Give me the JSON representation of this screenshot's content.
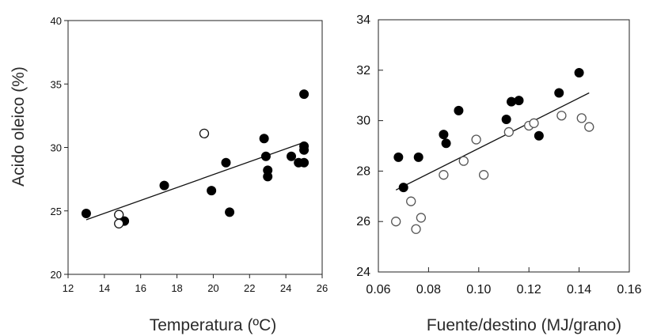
{
  "chart_data": [
    {
      "type": "scatter",
      "xlabel": "Temperatura (ºC)",
      "ylabel": "Acido oleico (%)",
      "xlim": [
        12,
        26
      ],
      "ylim": [
        20,
        40
      ],
      "xticks": [
        "12",
        "14",
        "16",
        "18",
        "20",
        "22",
        "24",
        "26"
      ],
      "yticks": [
        "20",
        "25",
        "30",
        "35",
        "40"
      ],
      "grid": false,
      "series": [
        {
          "marker": "filled",
          "color": "#000000",
          "points": [
            [
              13.0,
              24.8
            ],
            [
              15.1,
              24.2
            ],
            [
              17.3,
              27.0
            ],
            [
              19.9,
              26.6
            ],
            [
              20.7,
              28.8
            ],
            [
              20.9,
              24.9
            ],
            [
              22.8,
              30.7
            ],
            [
              22.9,
              29.3
            ],
            [
              23.0,
              28.2
            ],
            [
              23.0,
              27.7
            ],
            [
              24.3,
              29.3
            ],
            [
              24.7,
              28.8
            ],
            [
              25.0,
              34.2
            ],
            [
              25.0,
              30.1
            ],
            [
              25.0,
              29.8
            ],
            [
              25.0,
              28.8
            ]
          ]
        },
        {
          "marker": "open",
          "color": "#000000",
          "points": [
            [
              14.8,
              24.7
            ],
            [
              14.8,
              24.0
            ],
            [
              19.5,
              31.1
            ]
          ]
        }
      ],
      "trendline": {
        "x": [
          13.0,
          25.0
        ],
        "y": [
          24.3,
          30.4
        ]
      }
    },
    {
      "type": "scatter",
      "xlabel": "Fuente/destino (MJ/grano)",
      "ylabel": "",
      "xlim": [
        0.06,
        0.16
      ],
      "ylim": [
        24,
        34
      ],
      "xticks": [
        "0.06",
        "0.08",
        "0.10",
        "0.12",
        "0.14",
        "0.16"
      ],
      "yticks": [
        "24",
        "26",
        "28",
        "30",
        "32",
        "34"
      ],
      "grid": false,
      "series": [
        {
          "marker": "filled",
          "color": "#000000",
          "points": [
            [
              0.068,
              28.55
            ],
            [
              0.07,
              27.35
            ],
            [
              0.076,
              28.55
            ],
            [
              0.086,
              29.45
            ],
            [
              0.087,
              29.1
            ],
            [
              0.092,
              30.4
            ],
            [
              0.111,
              30.05
            ],
            [
              0.113,
              30.75
            ],
            [
              0.116,
              30.8
            ],
            [
              0.124,
              29.4
            ],
            [
              0.132,
              31.1
            ],
            [
              0.14,
              31.9
            ]
          ]
        },
        {
          "marker": "open",
          "color": "#000000",
          "points": [
            [
              0.067,
              26.0
            ],
            [
              0.073,
              26.8
            ],
            [
              0.075,
              25.7
            ],
            [
              0.077,
              26.15
            ],
            [
              0.086,
              27.85
            ],
            [
              0.094,
              28.4
            ],
            [
              0.099,
              29.25
            ],
            [
              0.102,
              27.85
            ],
            [
              0.112,
              29.55
            ],
            [
              0.12,
              29.8
            ],
            [
              0.122,
              29.9
            ],
            [
              0.133,
              30.2
            ],
            [
              0.141,
              30.1
            ],
            [
              0.144,
              29.75
            ]
          ]
        }
      ],
      "trendline": {
        "x": [
          0.067,
          0.144
        ],
        "y": [
          27.25,
          31.1
        ]
      }
    }
  ]
}
